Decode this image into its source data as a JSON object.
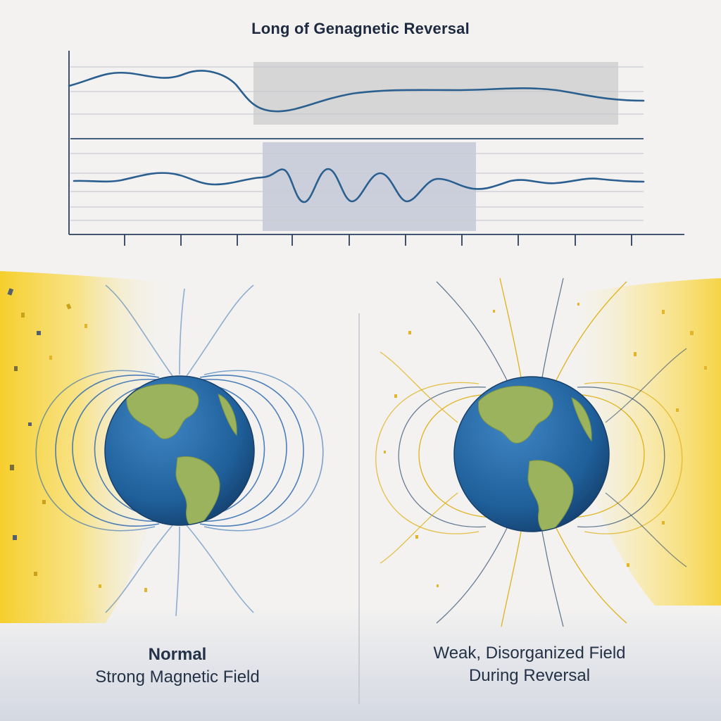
{
  "title": "Long of Genagnetic Reversal",
  "panels": {
    "left": {
      "heading": "Normal",
      "subtitle": "Strong Magnetic Field"
    },
    "right": {
      "line1": "Weak, Disorganized Field",
      "line2": "During Reversal"
    }
  },
  "colors": {
    "background": "#f3f2f1",
    "curve": "#2a5f8f",
    "normal_field": "#2f6bb0",
    "weak_field": "#e0b21a",
    "solar_wind": "#f6cf2c",
    "ocean": "#1f5f9a",
    "land": "#9bb35c",
    "text": "#243247"
  },
  "icons": {
    "left_globe": "earth-globe-americas-icon",
    "right_globe": "earth-globe-americas-icon"
  }
}
